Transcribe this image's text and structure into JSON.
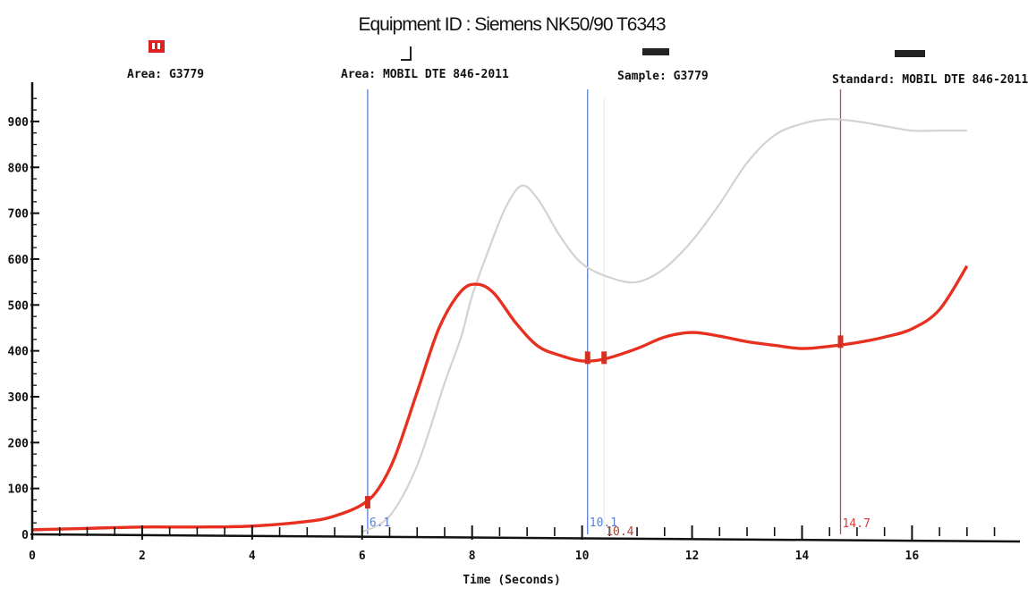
{
  "chart_data": {
    "type": "line",
    "title": "Equipment ID : Siemens NK50/90 T6343",
    "xlabel": "Time (Seconds)",
    "ylabel": "",
    "xlim": [
      0,
      17.8
    ],
    "ylim": [
      0,
      970
    ],
    "x_ticks": [
      "0",
      "2",
      "4",
      "6",
      "8",
      "10",
      "12",
      "14",
      "16"
    ],
    "y_ticks": [
      "0",
      "100",
      "200",
      "300",
      "400",
      "500",
      "600",
      "700",
      "800",
      "900"
    ],
    "legend": [
      {
        "label": "Area: G3779",
        "color": "#e02020"
      },
      {
        "label": "Area: MOBIL DTE 846-2011",
        "color": "#222222"
      },
      {
        "label": "Sample: G3779",
        "color": "#222222"
      },
      {
        "label": "Standard: MOBIL DTE 846-2011",
        "color": "#222222"
      }
    ],
    "series": [
      {
        "name": "Sample: G3779",
        "color": "#e83020",
        "x": [
          0,
          1,
          2,
          3,
          4,
          5,
          5.5,
          6,
          6.3,
          6.6,
          7,
          7.4,
          7.8,
          8.1,
          8.4,
          8.8,
          9.2,
          9.6,
          10,
          10.4,
          11,
          11.5,
          12,
          12.5,
          13,
          13.5,
          14,
          14.5,
          15,
          15.5,
          16,
          16.5,
          17
        ],
        "y": [
          10,
          13,
          16,
          16,
          18,
          28,
          40,
          65,
          100,
          170,
          310,
          450,
          530,
          545,
          525,
          460,
          410,
          390,
          378,
          382,
          405,
          430,
          440,
          432,
          420,
          412,
          405,
          410,
          418,
          430,
          448,
          490,
          585
        ]
      },
      {
        "name": "Standard: MOBIL DTE 846-2011",
        "color": "#d2d2d2",
        "x": [
          6,
          6.5,
          7,
          7.5,
          7.8,
          8,
          8.3,
          8.6,
          8.9,
          9.2,
          9.6,
          10,
          10.5,
          11,
          11.5,
          12,
          12.5,
          13,
          13.5,
          14,
          14.5,
          15,
          15.5,
          16,
          16.5,
          17
        ],
        "y": [
          5,
          40,
          150,
          330,
          430,
          520,
          620,
          710,
          760,
          730,
          650,
          590,
          560,
          550,
          580,
          640,
          720,
          810,
          870,
          895,
          905,
          900,
          890,
          880,
          880,
          880
        ]
      }
    ],
    "markers": [
      {
        "x": 6.1,
        "label": "6.1",
        "color": "#5a7fd0"
      },
      {
        "x": 10.1,
        "label": "10.1",
        "color": "#5a7fd0"
      },
      {
        "x": 10.4,
        "label": "10.4",
        "color": "#b04030"
      },
      {
        "x": 14.7,
        "label": "14.7",
        "color": "#d04040"
      }
    ]
  }
}
